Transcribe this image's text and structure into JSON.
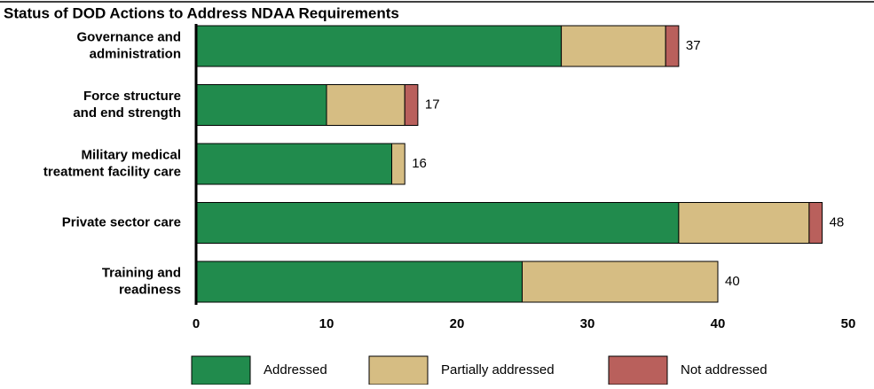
{
  "chart_data": {
    "type": "stacked_bar_horizontal",
    "title": "Status of DOD Actions to Address NDAA Requirements",
    "categories": [
      [
        "Governance and",
        "administration"
      ],
      [
        "Force structure",
        "and end strength"
      ],
      [
        "Military medical",
        "treatment facility care"
      ],
      [
        "Private sector care"
      ],
      [
        "Training and",
        "readiness"
      ]
    ],
    "series": [
      {
        "name": "Addressed",
        "color": "#218b4d",
        "values": [
          28,
          10,
          15,
          37,
          25
        ]
      },
      {
        "name": "Partially addressed",
        "color": "#d6bd83",
        "values": [
          8,
          6,
          1,
          10,
          15
        ]
      },
      {
        "name": "Not addressed",
        "color": "#b9605c",
        "values": [
          1,
          1,
          0,
          1,
          0
        ]
      }
    ],
    "totals": [
      37,
      17,
      16,
      48,
      40
    ],
    "xlim": [
      0,
      50
    ],
    "xticks": [
      0,
      10,
      20,
      30,
      40,
      50
    ],
    "grid": false,
    "legend": "bottom"
  }
}
